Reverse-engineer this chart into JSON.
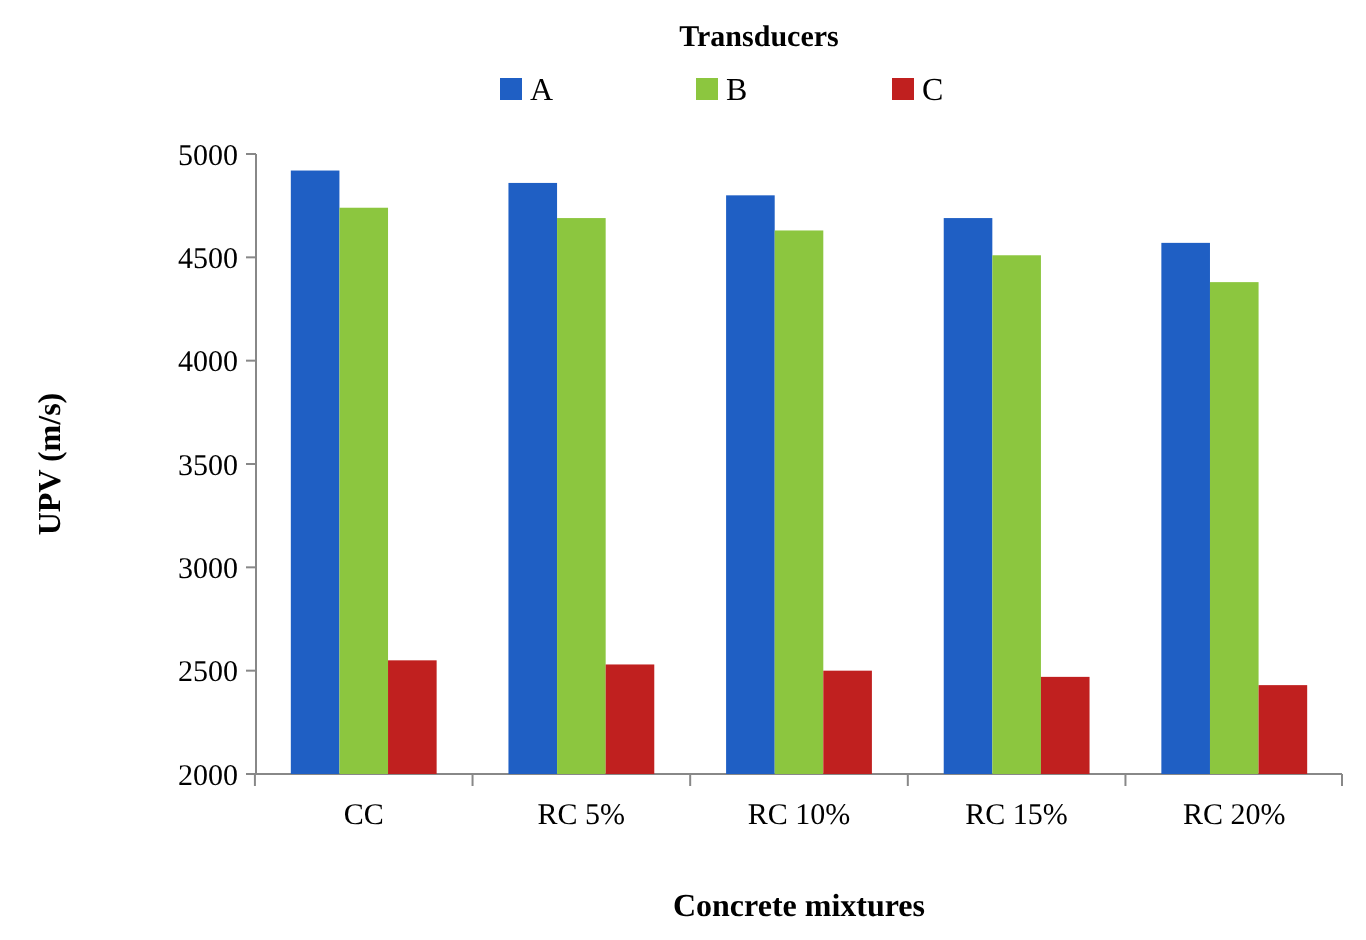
{
  "chart_data": {
    "type": "bar",
    "legend_title": "Transducers",
    "xlabel": "Concrete mixtures",
    "ylabel": "UPV (m/s)",
    "categories": [
      "CC",
      "RC 5%",
      "RC 10%",
      "RC 15%",
      "RC 20%"
    ],
    "series": [
      {
        "name": "A",
        "color": "#1f5fc4",
        "values": [
          4920,
          4860,
          4800,
          4690,
          4570
        ]
      },
      {
        "name": "B",
        "color": "#8cc63f",
        "values": [
          4740,
          4690,
          4630,
          4510,
          4380
        ]
      },
      {
        "name": "C",
        "color": "#c0201f",
        "values": [
          2550,
          2530,
          2500,
          2470,
          2430
        ]
      }
    ],
    "ylim": [
      2000,
      5000
    ],
    "yticks": [
      2000,
      2500,
      3000,
      3500,
      4000,
      4500,
      5000
    ],
    "legend": "top"
  }
}
